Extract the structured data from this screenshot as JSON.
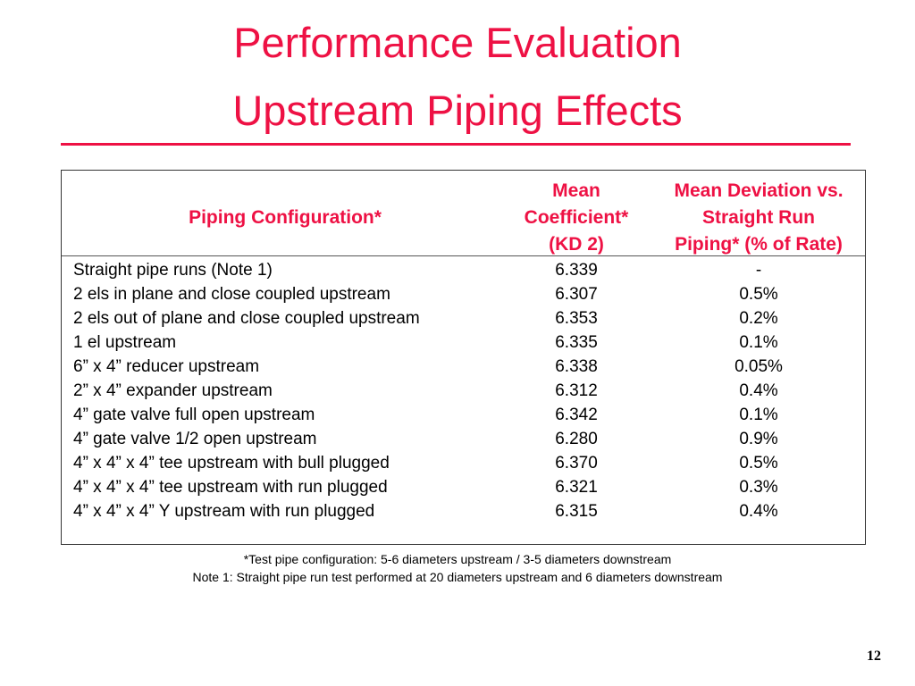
{
  "slide": {
    "title_line1": "Performance Evaluation",
    "title_line2": "Upstream Piping Effects",
    "page_number": "12",
    "accent_color": "#ee1144"
  },
  "table": {
    "headers": {
      "config": "Piping Configuration*",
      "coef_line1": "Mean",
      "coef_line2": "Coefficient*",
      "coef_line3": "(KD 2)",
      "dev_line1": "Mean Deviation vs.",
      "dev_line2": "Straight Run",
      "dev_line3": "Piping* (% of Rate)"
    },
    "rows": [
      {
        "config": "Straight pipe runs (Note 1)",
        "coef": "6.339",
        "dev": "-"
      },
      {
        "config": "2 els in plane and close coupled upstream",
        "coef": "6.307",
        "dev": "0.5%"
      },
      {
        "config": "2 els out of plane and close coupled upstream",
        "coef": "6.353",
        "dev": "0.2%"
      },
      {
        "config": "1 el upstream",
        "coef": "6.335",
        "dev": "0.1%"
      },
      {
        "config": "6” x 4” reducer upstream",
        "coef": "6.338",
        "dev": "0.05%"
      },
      {
        "config": "2” x 4” expander upstream",
        "coef": "6.312",
        "dev": "0.4%"
      },
      {
        "config": "4” gate valve full open upstream",
        "coef": "6.342",
        "dev": "0.1%"
      },
      {
        "config": "4” gate valve 1/2 open upstream",
        "coef": "6.280",
        "dev": "0.9%"
      },
      {
        "config": "4” x 4” x 4” tee upstream with bull plugged",
        "coef": "6.370",
        "dev": "0.5%"
      },
      {
        "config": "4” x 4” x 4” tee upstream with run plugged",
        "coef": "6.321",
        "dev": "0.3%"
      },
      {
        "config": "4” x 4” x 4” Y upstream with run plugged",
        "coef": "6.315",
        "dev": "0.4%"
      }
    ]
  },
  "notes": {
    "footnote": "*Test pipe configuration: 5-6 diameters upstream / 3-5 diameters downstream",
    "note1": "Note 1:  Straight pipe run test performed at 20 diameters upstream and 6 diameters downstream"
  }
}
